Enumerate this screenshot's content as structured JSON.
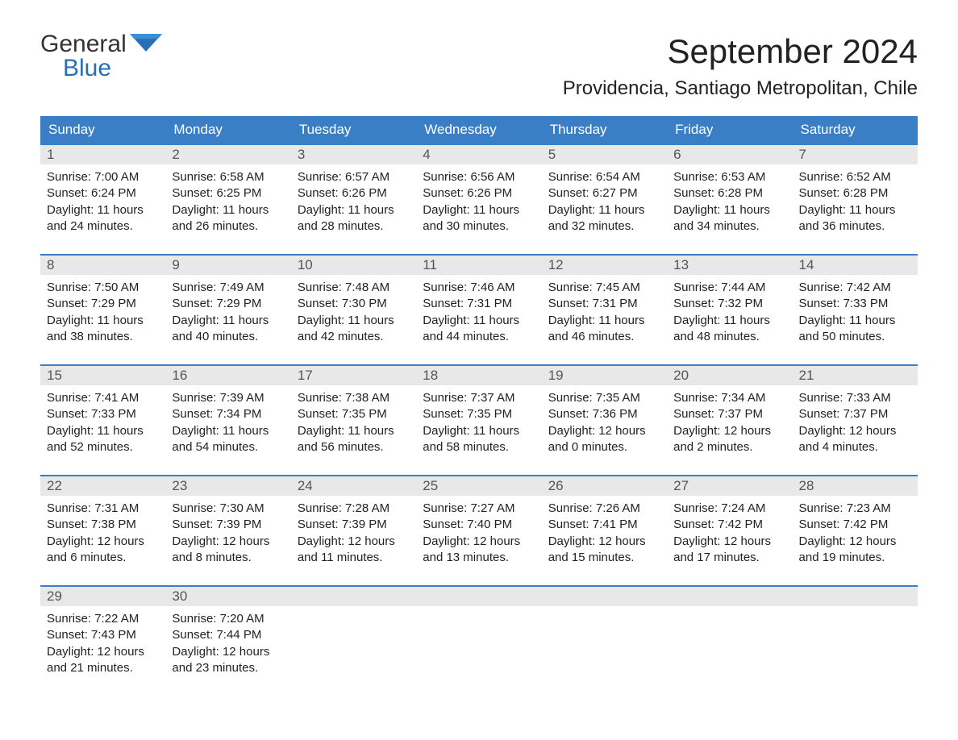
{
  "logo": {
    "text_general": "General",
    "text_blue": "Blue",
    "icon_color": "#2a6fb5"
  },
  "title": "September 2024",
  "location": "Providencia, Santiago Metropolitan, Chile",
  "colors": {
    "header_bg": "#3a7fc5",
    "header_text": "#ffffff",
    "day_number_bg": "#e8e8e8",
    "day_number_text": "#555555",
    "body_text": "#222222",
    "accent": "#2a6fb5"
  },
  "day_headers": [
    "Sunday",
    "Monday",
    "Tuesday",
    "Wednesday",
    "Thursday",
    "Friday",
    "Saturday"
  ],
  "weeks": [
    [
      {
        "num": "1",
        "sunrise": "Sunrise: 7:00 AM",
        "sunset": "Sunset: 6:24 PM",
        "daylight1": "Daylight: 11 hours",
        "daylight2": "and 24 minutes."
      },
      {
        "num": "2",
        "sunrise": "Sunrise: 6:58 AM",
        "sunset": "Sunset: 6:25 PM",
        "daylight1": "Daylight: 11 hours",
        "daylight2": "and 26 minutes."
      },
      {
        "num": "3",
        "sunrise": "Sunrise: 6:57 AM",
        "sunset": "Sunset: 6:26 PM",
        "daylight1": "Daylight: 11 hours",
        "daylight2": "and 28 minutes."
      },
      {
        "num": "4",
        "sunrise": "Sunrise: 6:56 AM",
        "sunset": "Sunset: 6:26 PM",
        "daylight1": "Daylight: 11 hours",
        "daylight2": "and 30 minutes."
      },
      {
        "num": "5",
        "sunrise": "Sunrise: 6:54 AM",
        "sunset": "Sunset: 6:27 PM",
        "daylight1": "Daylight: 11 hours",
        "daylight2": "and 32 minutes."
      },
      {
        "num": "6",
        "sunrise": "Sunrise: 6:53 AM",
        "sunset": "Sunset: 6:28 PM",
        "daylight1": "Daylight: 11 hours",
        "daylight2": "and 34 minutes."
      },
      {
        "num": "7",
        "sunrise": "Sunrise: 6:52 AM",
        "sunset": "Sunset: 6:28 PM",
        "daylight1": "Daylight: 11 hours",
        "daylight2": "and 36 minutes."
      }
    ],
    [
      {
        "num": "8",
        "sunrise": "Sunrise: 7:50 AM",
        "sunset": "Sunset: 7:29 PM",
        "daylight1": "Daylight: 11 hours",
        "daylight2": "and 38 minutes."
      },
      {
        "num": "9",
        "sunrise": "Sunrise: 7:49 AM",
        "sunset": "Sunset: 7:29 PM",
        "daylight1": "Daylight: 11 hours",
        "daylight2": "and 40 minutes."
      },
      {
        "num": "10",
        "sunrise": "Sunrise: 7:48 AM",
        "sunset": "Sunset: 7:30 PM",
        "daylight1": "Daylight: 11 hours",
        "daylight2": "and 42 minutes."
      },
      {
        "num": "11",
        "sunrise": "Sunrise: 7:46 AM",
        "sunset": "Sunset: 7:31 PM",
        "daylight1": "Daylight: 11 hours",
        "daylight2": "and 44 minutes."
      },
      {
        "num": "12",
        "sunrise": "Sunrise: 7:45 AM",
        "sunset": "Sunset: 7:31 PM",
        "daylight1": "Daylight: 11 hours",
        "daylight2": "and 46 minutes."
      },
      {
        "num": "13",
        "sunrise": "Sunrise: 7:44 AM",
        "sunset": "Sunset: 7:32 PM",
        "daylight1": "Daylight: 11 hours",
        "daylight2": "and 48 minutes."
      },
      {
        "num": "14",
        "sunrise": "Sunrise: 7:42 AM",
        "sunset": "Sunset: 7:33 PM",
        "daylight1": "Daylight: 11 hours",
        "daylight2": "and 50 minutes."
      }
    ],
    [
      {
        "num": "15",
        "sunrise": "Sunrise: 7:41 AM",
        "sunset": "Sunset: 7:33 PM",
        "daylight1": "Daylight: 11 hours",
        "daylight2": "and 52 minutes."
      },
      {
        "num": "16",
        "sunrise": "Sunrise: 7:39 AM",
        "sunset": "Sunset: 7:34 PM",
        "daylight1": "Daylight: 11 hours",
        "daylight2": "and 54 minutes."
      },
      {
        "num": "17",
        "sunrise": "Sunrise: 7:38 AM",
        "sunset": "Sunset: 7:35 PM",
        "daylight1": "Daylight: 11 hours",
        "daylight2": "and 56 minutes."
      },
      {
        "num": "18",
        "sunrise": "Sunrise: 7:37 AM",
        "sunset": "Sunset: 7:35 PM",
        "daylight1": "Daylight: 11 hours",
        "daylight2": "and 58 minutes."
      },
      {
        "num": "19",
        "sunrise": "Sunrise: 7:35 AM",
        "sunset": "Sunset: 7:36 PM",
        "daylight1": "Daylight: 12 hours",
        "daylight2": "and 0 minutes."
      },
      {
        "num": "20",
        "sunrise": "Sunrise: 7:34 AM",
        "sunset": "Sunset: 7:37 PM",
        "daylight1": "Daylight: 12 hours",
        "daylight2": "and 2 minutes."
      },
      {
        "num": "21",
        "sunrise": "Sunrise: 7:33 AM",
        "sunset": "Sunset: 7:37 PM",
        "daylight1": "Daylight: 12 hours",
        "daylight2": "and 4 minutes."
      }
    ],
    [
      {
        "num": "22",
        "sunrise": "Sunrise: 7:31 AM",
        "sunset": "Sunset: 7:38 PM",
        "daylight1": "Daylight: 12 hours",
        "daylight2": "and 6 minutes."
      },
      {
        "num": "23",
        "sunrise": "Sunrise: 7:30 AM",
        "sunset": "Sunset: 7:39 PM",
        "daylight1": "Daylight: 12 hours",
        "daylight2": "and 8 minutes."
      },
      {
        "num": "24",
        "sunrise": "Sunrise: 7:28 AM",
        "sunset": "Sunset: 7:39 PM",
        "daylight1": "Daylight: 12 hours",
        "daylight2": "and 11 minutes."
      },
      {
        "num": "25",
        "sunrise": "Sunrise: 7:27 AM",
        "sunset": "Sunset: 7:40 PM",
        "daylight1": "Daylight: 12 hours",
        "daylight2": "and 13 minutes."
      },
      {
        "num": "26",
        "sunrise": "Sunrise: 7:26 AM",
        "sunset": "Sunset: 7:41 PM",
        "daylight1": "Daylight: 12 hours",
        "daylight2": "and 15 minutes."
      },
      {
        "num": "27",
        "sunrise": "Sunrise: 7:24 AM",
        "sunset": "Sunset: 7:42 PM",
        "daylight1": "Daylight: 12 hours",
        "daylight2": "and 17 minutes."
      },
      {
        "num": "28",
        "sunrise": "Sunrise: 7:23 AM",
        "sunset": "Sunset: 7:42 PM",
        "daylight1": "Daylight: 12 hours",
        "daylight2": "and 19 minutes."
      }
    ],
    [
      {
        "num": "29",
        "sunrise": "Sunrise: 7:22 AM",
        "sunset": "Sunset: 7:43 PM",
        "daylight1": "Daylight: 12 hours",
        "daylight2": "and 21 minutes."
      },
      {
        "num": "30",
        "sunrise": "Sunrise: 7:20 AM",
        "sunset": "Sunset: 7:44 PM",
        "daylight1": "Daylight: 12 hours",
        "daylight2": "and 23 minutes."
      },
      {
        "empty": true
      },
      {
        "empty": true
      },
      {
        "empty": true
      },
      {
        "empty": true
      },
      {
        "empty": true
      }
    ]
  ]
}
